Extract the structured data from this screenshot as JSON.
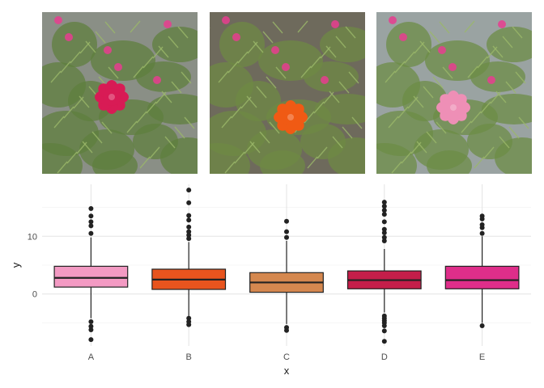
{
  "photos": [
    {
      "name": "pink-portulaca-photo",
      "flower_color": "#d81b55",
      "foliage_color": "#5f7f3e",
      "bg_color": "#8a8f86"
    },
    {
      "name": "orange-portulaca-photo",
      "flower_color": "#f05a14",
      "foliage_color": "#6f8a44",
      "bg_color": "#6e6a5c"
    },
    {
      "name": "light-pink-portulaca-photo",
      "flower_color": "#ee8fb6",
      "foliage_color": "#6c8c46",
      "bg_color": "#9aa3a2"
    }
  ],
  "chart_data": {
    "type": "boxplot",
    "xlabel": "x",
    "ylabel": "y",
    "categories": [
      "A",
      "B",
      "C",
      "D",
      "E"
    ],
    "y_ticks": [
      0,
      10
    ],
    "ylim": [
      -9,
      19
    ],
    "grid": true,
    "boxes": [
      {
        "category": "A",
        "fill": "#f39ac3",
        "whisker_low": -4.2,
        "q1": 1.2,
        "median": 2.8,
        "q3": 4.8,
        "whisker_high": 9.8,
        "outliers": [
          -4.8,
          -5.6,
          -6.2,
          -7.9,
          10.5,
          11.8,
          12.5,
          13.5,
          14.8
        ]
      },
      {
        "category": "B",
        "fill": "#e8541e",
        "whisker_low": -4.0,
        "q1": 0.8,
        "median": 2.5,
        "q3": 4.3,
        "whisker_high": 9.0,
        "outliers": [
          -4.2,
          -4.8,
          -5.3,
          9.6,
          10.2,
          10.8,
          11.6,
          12.8,
          13.6,
          15.8,
          18.0
        ]
      },
      {
        "category": "C",
        "fill": "#d5884f",
        "whisker_low": -5.2,
        "q1": 0.3,
        "median": 2.0,
        "q3": 3.7,
        "whisker_high": 9.2,
        "outliers": [
          -5.8,
          -6.3,
          9.8,
          10.8,
          12.6
        ]
      },
      {
        "category": "D",
        "fill": "#c41e4a",
        "whisker_low": -3.2,
        "q1": 0.9,
        "median": 2.4,
        "q3": 4.0,
        "whisker_high": 7.8,
        "outliers": [
          -3.8,
          -4.2,
          -4.6,
          -5.0,
          -5.5,
          -6.4,
          -8.2,
          9.2,
          9.8,
          10.6,
          11.2,
          12.5,
          13.8,
          14.5,
          15.2,
          15.9
        ]
      },
      {
        "category": "E",
        "fill": "#df2e8a",
        "whisker_low": -5.0,
        "q1": 0.9,
        "median": 2.4,
        "q3": 4.8,
        "whisker_high": 10.0,
        "outliers": [
          -5.5,
          10.5,
          11.5,
          12.0,
          13.0,
          13.5
        ]
      }
    ]
  }
}
